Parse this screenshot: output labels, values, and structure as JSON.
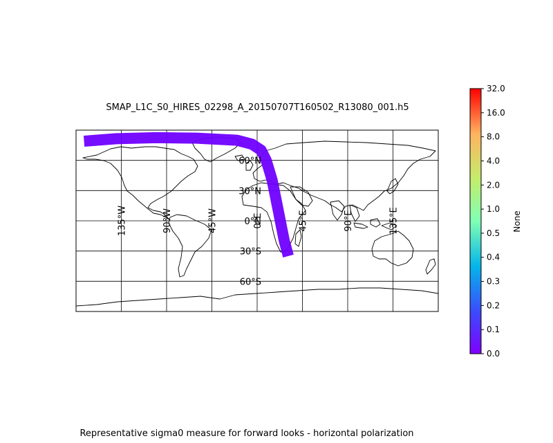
{
  "figure": {
    "title": "SMAP_L1C_S0_HIRES_02298_A_20150707T160502_R13080_001.h5",
    "footer": "Representative sigma0 measure for forward looks - horizontal polarization"
  },
  "map": {
    "projection": "equirectangular",
    "lon_range": [
      -180,
      180
    ],
    "lat_range": [
      -90,
      90
    ],
    "meridians": [
      -135,
      -90,
      -45,
      0,
      45,
      90,
      135
    ],
    "parallels": [
      -60,
      -30,
      0,
      30,
      60
    ],
    "meridian_labels": [
      "135°W",
      "90°W",
      "45°W",
      "0°E",
      "45°E",
      "90°E",
      "135°E"
    ],
    "parallel_labels": [
      "60°S",
      "30°S",
      "0°N",
      "30°N",
      "60°N"
    ],
    "coastline_color": "#000000",
    "swath": {
      "color": "#7000ff",
      "value": 0.0,
      "track": [
        [
          -172,
          79
        ],
        [
          -140,
          81.5
        ],
        [
          -100,
          82.5
        ],
        [
          -60,
          82
        ],
        [
          -20,
          80
        ],
        [
          -5,
          76
        ],
        [
          4,
          70
        ],
        [
          9,
          60
        ],
        [
          12,
          50
        ],
        [
          15,
          40
        ],
        [
          18,
          25
        ],
        [
          21,
          10
        ],
        [
          24,
          -5
        ],
        [
          27,
          -20
        ],
        [
          31,
          -35
        ]
      ]
    }
  },
  "colorbar": {
    "label": "None",
    "ticks": [
      "0.0",
      "0.1",
      "0.2",
      "0.3",
      "0.4",
      "0.5",
      "1.0",
      "2.0",
      "4.0",
      "8.0",
      "16.0",
      "32.0"
    ],
    "colormap": "rainbow"
  }
}
